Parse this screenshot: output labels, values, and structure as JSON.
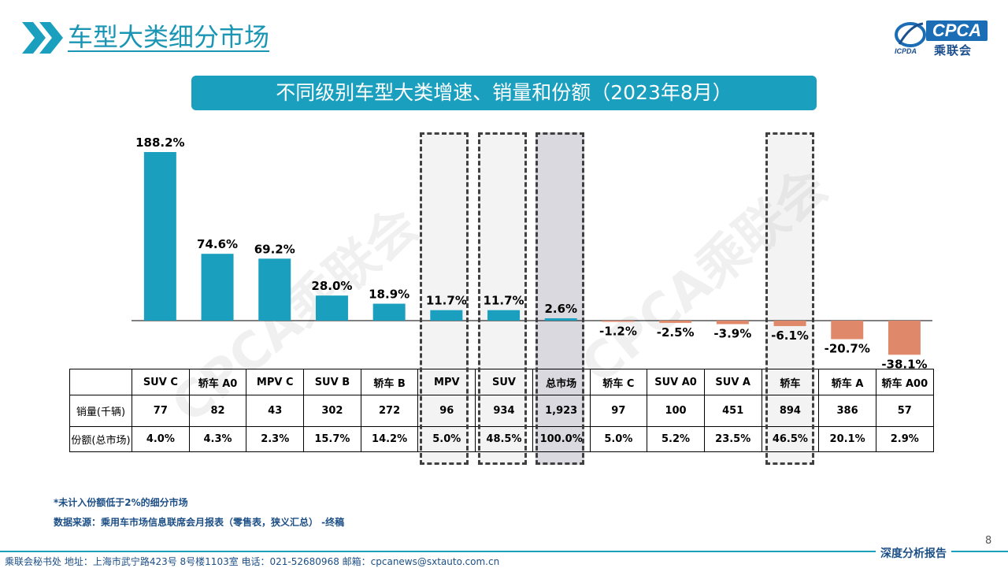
{
  "header": {
    "title": "车型大类细分市场",
    "logo_text": "CPCA",
    "logo_sub": "乘联会",
    "logo_mark_text": "ICPDA"
  },
  "subtitle": "不同级别车型大类增速、销量和份额（2023年8月）",
  "watermark": "CPCA乘联会",
  "colors": {
    "accent": "#1aa0be",
    "positive_bar": "#1aa0be",
    "negative_bar": "#e0896a"
  },
  "chart_data": {
    "type": "bar",
    "categories": [
      "SUV C",
      "轿车 A0",
      "MPV C",
      "SUV B",
      "轿车 B",
      "MPV",
      "SUV",
      "总市场",
      "轿车 C",
      "SUV A0",
      "SUV A",
      "轿车",
      "轿车 A",
      "轿车 A00"
    ],
    "values": [
      188.2,
      74.6,
      69.2,
      28.0,
      18.9,
      11.7,
      11.7,
      2.6,
      -1.2,
      -2.5,
      -3.9,
      -6.1,
      -20.7,
      -38.1
    ],
    "value_labels": [
      "188.2%",
      "74.6%",
      "69.2%",
      "28.0%",
      "18.9%",
      "11.7%",
      "11.7%",
      "2.6%",
      "-1.2%",
      "-2.5%",
      "-3.9%",
      "-6.1%",
      "-20.7%",
      "-38.1%"
    ],
    "highlighted": [
      "MPV",
      "SUV",
      "总市场",
      "轿车"
    ],
    "ylim": [
      -40,
      190
    ],
    "grid": false,
    "legend": "none"
  },
  "table": {
    "row_labels": [
      "销量(千辆)",
      "份额(总市场)"
    ],
    "sales": [
      "77",
      "82",
      "43",
      "302",
      "272",
      "96",
      "934",
      "1,923",
      "97",
      "100",
      "451",
      "894",
      "386",
      "57"
    ],
    "share": [
      "4.0%",
      "4.3%",
      "2.3%",
      "15.7%",
      "14.2%",
      "5.0%",
      "48.5%",
      "100.0%",
      "5.0%",
      "5.2%",
      "23.5%",
      "46.5%",
      "20.1%",
      "2.9%"
    ]
  },
  "notes": {
    "footnote": "*未计入份额低于2%的细分市场",
    "source": "数据来源：乘用车市场信息联席会月报表（零售表，狭义汇总）   -终稿"
  },
  "footer": {
    "page_number": "8",
    "tag": "深度分析报告",
    "contact": "乘联会秘书处    地址：上海市武宁路423号 8号楼1103室    电话：021-52680968     邮箱：cpcanews@sxtauto.com.cn"
  }
}
